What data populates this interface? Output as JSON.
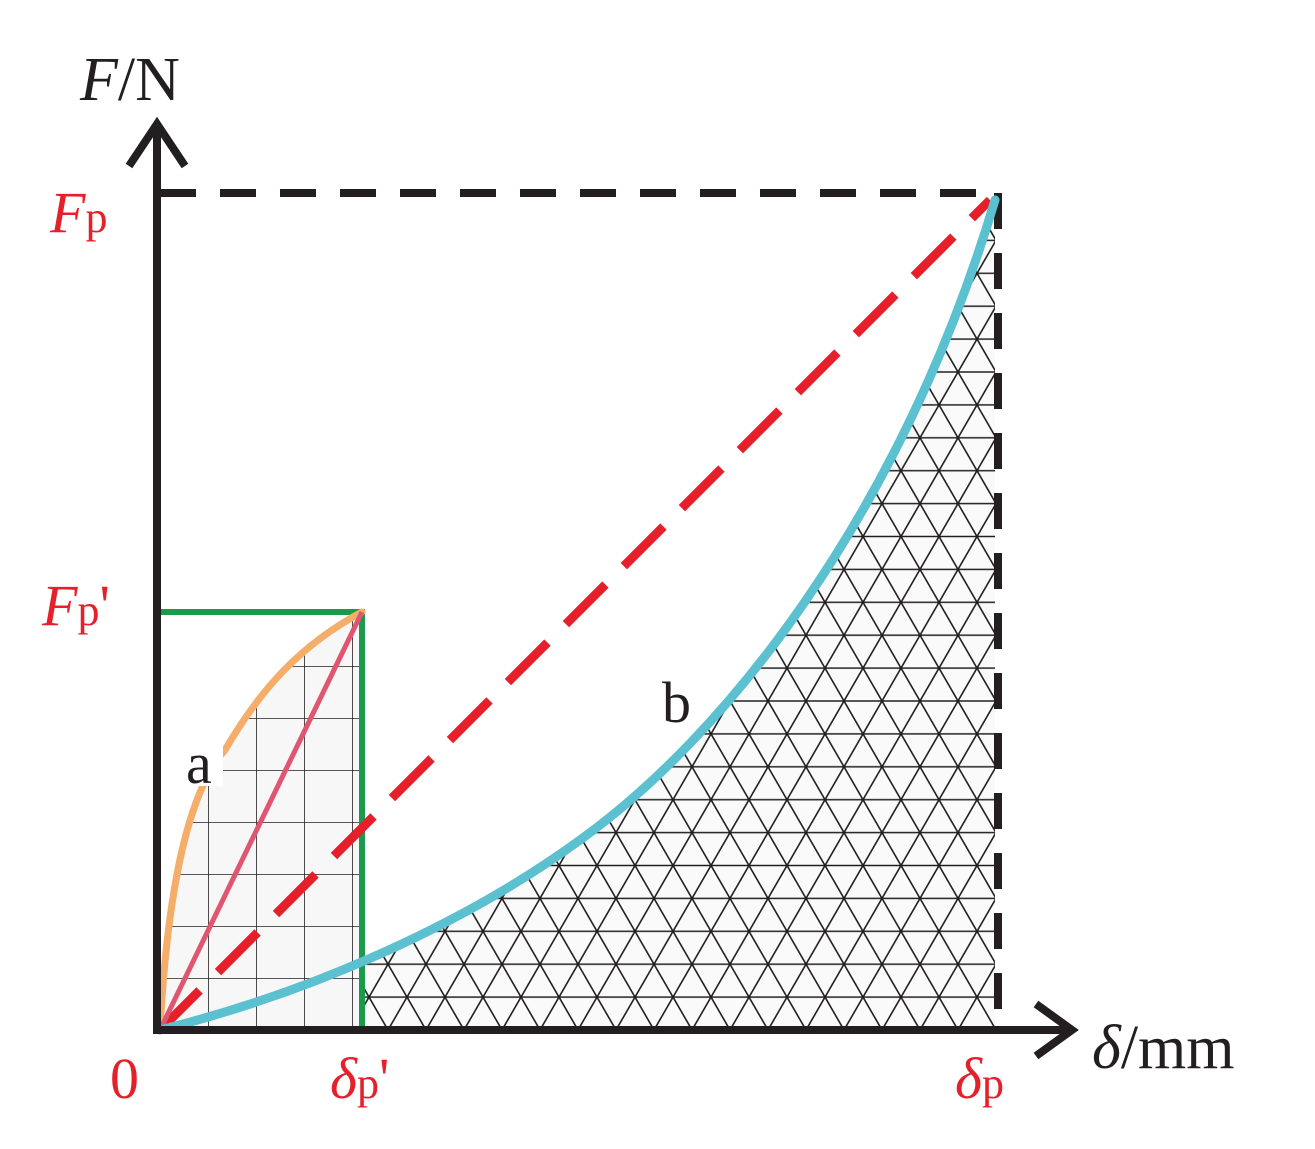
{
  "diagram": {
    "y_axis": {
      "var": "F",
      "unit": "/N"
    },
    "x_axis": {
      "var": "δ",
      "unit": "/mm"
    },
    "origin_label": "0",
    "y_ticks": {
      "Fp": {
        "var": "F",
        "sub": "p",
        "prime": ""
      },
      "Fp2": {
        "var": "F",
        "sub": "p",
        "prime": "'"
      }
    },
    "x_ticks": {
      "dp2": {
        "var": "δ",
        "sub": "p",
        "prime": "'"
      },
      "dp": {
        "var": "δ",
        "sub": "p",
        "prime": ""
      }
    },
    "curves": {
      "a": "a",
      "b": "b"
    },
    "colors": {
      "axis": "#231f20",
      "label_red": "#e5202a",
      "curve_a": "#f5ad6a",
      "secant_a": "#e05570",
      "rect_green": "#1a9a4a",
      "dashed_red": "#e5202a",
      "curve_b": "#5bc0cf",
      "hatch": "#231f20"
    }
  }
}
